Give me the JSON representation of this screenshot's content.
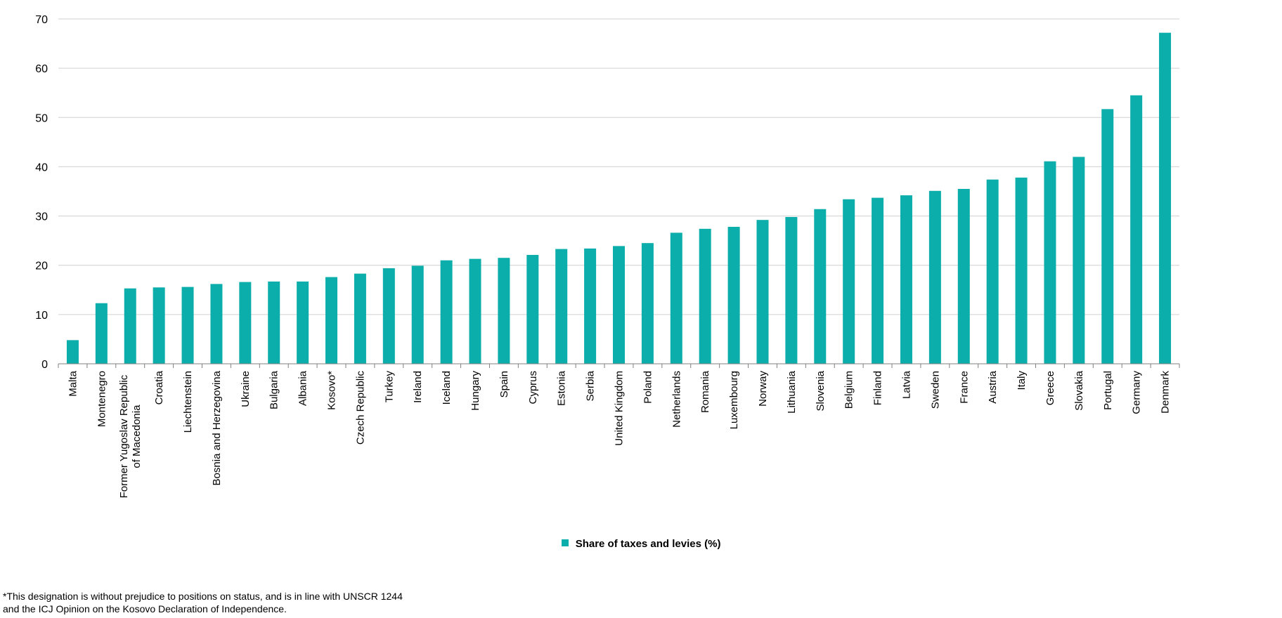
{
  "chart_data": {
    "type": "bar",
    "categories": [
      "Malta",
      "Montenegro",
      "Former Yugoslav Republic of Macedonia",
      "Croatia",
      "Liechtenstein",
      "Bosnia and Herzegovina",
      "Ukraine",
      "Bulgaria",
      "Albania",
      "Kosovo*",
      "Czech Republic",
      "Turkey",
      "Ireland",
      "Iceland",
      "Hungary",
      "Spain",
      "Cyprus",
      "Estonia",
      "Serbia",
      "United Kingdom",
      "Poland",
      "Netherlands",
      "Romania",
      "Luxembourg",
      "Norway",
      "Lithuania",
      "Slovenia",
      "Belgium",
      "Finland",
      "Latvia",
      "Sweden",
      "France",
      "Austria",
      "Italy",
      "Greece",
      "Slovakia",
      "Portugal",
      "Germany",
      "Denmark"
    ],
    "category_lines": [
      [
        "Malta"
      ],
      [
        "Montenegro"
      ],
      [
        "Former Yugoslav Republic",
        "of Macedonia"
      ],
      [
        "Croatia"
      ],
      [
        "Liechtenstein"
      ],
      [
        "Bosnia and Herzegovina"
      ],
      [
        "Ukraine"
      ],
      [
        "Bulgaria"
      ],
      [
        "Albania"
      ],
      [
        "Kosovo*"
      ],
      [
        "Czech Republic"
      ],
      [
        "Turkey"
      ],
      [
        "Ireland"
      ],
      [
        "Iceland"
      ],
      [
        "Hungary"
      ],
      [
        "Spain"
      ],
      [
        "Cyprus"
      ],
      [
        "Estonia"
      ],
      [
        "Serbia"
      ],
      [
        "United Kingdom"
      ],
      [
        "Poland"
      ],
      [
        "Netherlands"
      ],
      [
        "Romania"
      ],
      [
        "Luxembourg"
      ],
      [
        "Norway"
      ],
      [
        "Lithuania"
      ],
      [
        "Slovenia"
      ],
      [
        "Belgium"
      ],
      [
        "Finland"
      ],
      [
        "Latvia"
      ],
      [
        "Sweden"
      ],
      [
        "France"
      ],
      [
        "Austria"
      ],
      [
        "Italy"
      ],
      [
        "Greece"
      ],
      [
        "Slovakia"
      ],
      [
        "Portugal"
      ],
      [
        "Germany"
      ],
      [
        "Denmark"
      ]
    ],
    "series": [
      {
        "name": "Share of taxes and levies (%)",
        "values": [
          4.8,
          12.3,
          15.3,
          15.5,
          15.6,
          16.2,
          16.6,
          16.7,
          16.7,
          17.6,
          18.3,
          19.4,
          19.9,
          21.0,
          21.3,
          21.5,
          22.1,
          23.3,
          23.4,
          23.9,
          24.5,
          26.6,
          27.4,
          27.8,
          29.2,
          29.8,
          31.4,
          33.4,
          33.7,
          34.2,
          35.1,
          35.5,
          37.4,
          37.8,
          41.1,
          42.0,
          51.7,
          54.5,
          67.2
        ]
      }
    ],
    "ylim": [
      0,
      70
    ],
    "yticks": [
      "0",
      "10",
      "20",
      "30",
      "40",
      "50",
      "60",
      "70"
    ],
    "grid": true,
    "legend_position": "bottom"
  },
  "colors": {
    "bar": "#0BAEAA",
    "grid": "#D0D0D0",
    "axis": "#808080"
  },
  "legend": {
    "label": "Share of taxes and levies (%)"
  },
  "footnote": {
    "line1": "*This designation is without prejudice to positions on status, and is in line with UNSCR 1244",
    "line2": "and the ICJ Opinion on the Kosovo Declaration of Independence."
  }
}
